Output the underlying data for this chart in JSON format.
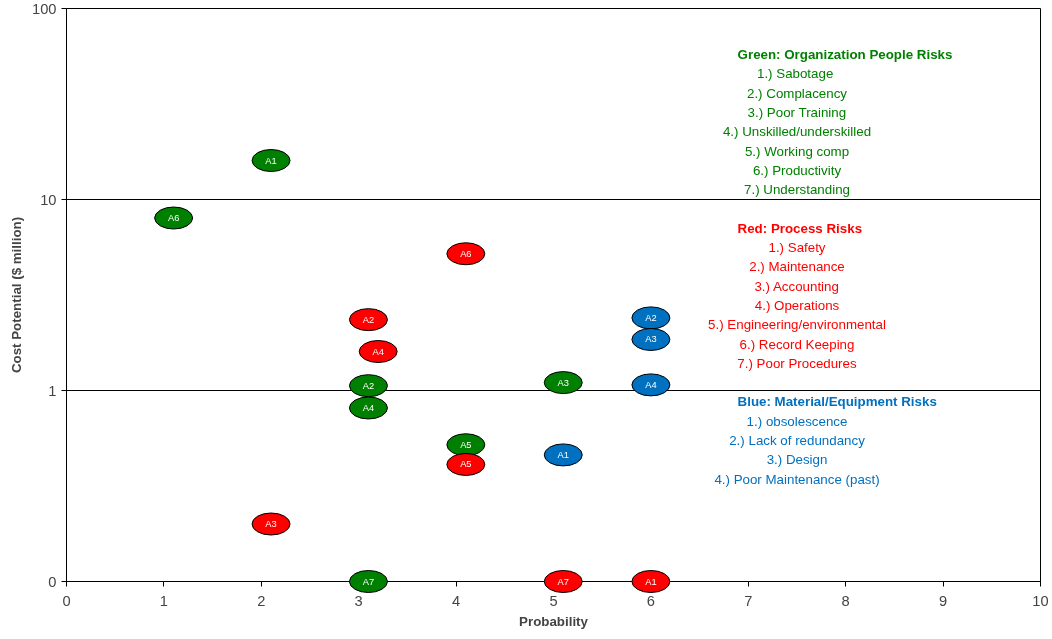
{
  "chart_data": {
    "type": "scatter",
    "xlabel": "Probability",
    "ylabel": "Cost Potential ($ million)",
    "xlim": [
      0,
      10
    ],
    "xticks": [
      0,
      1,
      2,
      3,
      4,
      5,
      6,
      7,
      8,
      9,
      10
    ],
    "ylim": [
      0.1,
      100
    ],
    "yticks": [
      {
        "value": 0.1,
        "label": "0"
      },
      1,
      10,
      100
    ],
    "log": "y",
    "grid": "y",
    "marker": "circle",
    "legend": "top right",
    "series": [
      {
        "name": "Green:  Organization People Risks",
        "color": "#008000",
        "x": [
          2.1,
          3.1,
          5.1,
          3.1,
          4.1,
          1.1,
          3.1
        ],
        "values": [
          16,
          1.06,
          1.1,
          0.81,
          0.52,
          8.0,
          0.1
        ],
        "value_labels": [
          "A1",
          "A2",
          "A3",
          "A4",
          "A5",
          "A6",
          "A7"
        ]
      },
      {
        "name": "Red:  Process Risks",
        "color": "#ff0000",
        "x": [
          6.0,
          3.1,
          2.1,
          3.2,
          4.1,
          4.1,
          5.1
        ],
        "values": [
          0.1,
          2.35,
          0.2,
          1.6,
          0.41,
          5.2,
          0.1
        ],
        "value_labels": [
          "A1",
          "A2",
          "A3",
          "A4",
          "A5",
          "A6",
          "A7"
        ]
      },
      {
        "name": "Blue:  Material/Equipment Risks",
        "color": "#0070c0",
        "x": [
          5.1,
          6.0,
          6.0,
          6.0
        ],
        "values": [
          0.46,
          2.4,
          1.85,
          1.07
        ],
        "value_labels": [
          "A1",
          "A2",
          "A3",
          "A4"
        ]
      }
    ],
    "annotations": [
      "1.)  Sabotage",
      "2.) Complacency",
      "3.) Poor Training",
      "4.) Unskilled/underskilled",
      "5.) Working comp",
      "6.) Productivity",
      "7.) Understanding",
      "1.) Safety",
      "2.) Maintenance",
      "3.) Accounting",
      "4.) Operations",
      "5.) Engineering/environmental",
      "6.) Record Keeping",
      "7.) Poor Procedures",
      "1.) obsolescence",
      "2.) Lack of redundancy",
      "3.) Design",
      "4.) Poor Maintenance (past)"
    ]
  }
}
